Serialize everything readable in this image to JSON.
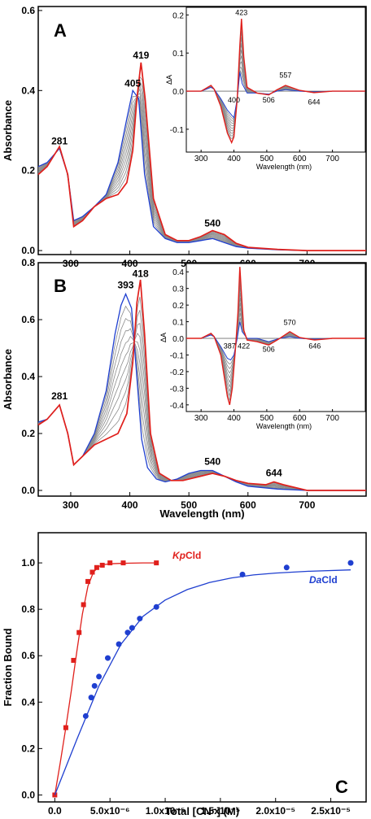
{
  "chart_data": [
    {
      "type": "line",
      "panel_label": "A",
      "xlabel": "",
      "ylabel": "Absorbance",
      "xlim": [
        245,
        800
      ],
      "ylim": [
        -0.01,
        0.61
      ],
      "xticks": [
        300,
        400,
        500,
        600,
        700
      ],
      "yticks": [
        0.0,
        0.2,
        0.4,
        0.6
      ],
      "ytick_labels": [
        "0.0",
        "0.2",
        "0.4",
        "0.6"
      ],
      "grid": false,
      "series": [
        {
          "color": "#1f3fd0",
          "x": [
            245,
            260,
            281,
            295,
            305,
            320,
            340,
            360,
            380,
            395,
            405,
            415,
            425,
            440,
            460,
            480,
            500,
            520,
            540,
            560,
            580,
            600,
            650,
            700,
            800
          ],
          "y": [
            0.21,
            0.22,
            0.255,
            0.19,
            0.075,
            0.085,
            0.11,
            0.14,
            0.22,
            0.33,
            0.4,
            0.38,
            0.19,
            0.06,
            0.03,
            0.02,
            0.02,
            0.025,
            0.03,
            0.02,
            0.01,
            0.006,
            0.002,
            0.0,
            0.0
          ]
        },
        {
          "color": "#e0201c",
          "x": [
            245,
            260,
            281,
            295,
            305,
            320,
            340,
            360,
            380,
            395,
            405,
            412,
            419,
            426,
            440,
            460,
            480,
            500,
            520,
            540,
            560,
            580,
            600,
            650,
            700,
            800
          ],
          "y": [
            0.19,
            0.21,
            0.26,
            0.19,
            0.06,
            0.075,
            0.11,
            0.13,
            0.14,
            0.17,
            0.25,
            0.38,
            0.47,
            0.38,
            0.13,
            0.04,
            0.025,
            0.025,
            0.035,
            0.05,
            0.04,
            0.018,
            0.008,
            0.003,
            0.0,
            0.0
          ]
        }
      ],
      "peak_labels": [
        {
          "text": "281",
          "x": 281,
          "y": 0.265
        },
        {
          "text": "405",
          "x": 405,
          "y": 0.41
        },
        {
          "text": "419",
          "x": 419,
          "y": 0.48
        },
        {
          "text": "540",
          "x": 540,
          "y": 0.06
        }
      ],
      "inset": {
        "type": "line",
        "xlabel": "Wavelength (nm)",
        "ylabel": "ΔA",
        "xlim": [
          255,
          800
        ],
        "ylim": [
          -0.16,
          0.22
        ],
        "xticks": [
          300,
          400,
          500,
          600,
          700
        ],
        "yticks": [
          -0.1,
          0.0,
          0.1,
          0.2
        ],
        "ytick_labels": [
          "-0.1",
          "0.0",
          "0.1",
          "0.2"
        ],
        "series": [
          {
            "color": "#1f3fd0",
            "x": [
              255,
              300,
              330,
              340,
              360,
              380,
              400,
              410,
              418,
              425,
              440,
              470,
              506,
              530,
              557,
              600,
              644,
              700,
              800
            ],
            "y": [
              0.0,
              0.0,
              0.01,
              0.005,
              -0.02,
              -0.05,
              -0.07,
              -0.02,
              0.05,
              0.02,
              -0.005,
              -0.005,
              -0.008,
              0.0,
              0.004,
              0.0,
              -0.002,
              0.0,
              0.0
            ]
          },
          {
            "color": "#e0201c",
            "x": [
              255,
              300,
              330,
              340,
              360,
              380,
              393,
              400,
              410,
              418,
              423,
              430,
              440,
              470,
              506,
              530,
              557,
              600,
              644,
              700,
              800
            ],
            "y": [
              0.0,
              0.0,
              0.015,
              0.005,
              -0.04,
              -0.11,
              -0.135,
              -0.12,
              -0.02,
              0.12,
              0.19,
              0.09,
              0.01,
              -0.005,
              -0.01,
              0.003,
              0.015,
              0.002,
              -0.004,
              0.0,
              0.0
            ]
          }
        ],
        "peak_labels": [
          {
            "text": "423",
            "x": 423,
            "y": 0.2
          },
          {
            "text": "400",
            "x": 400,
            "y": -0.03
          },
          {
            "text": "506",
            "x": 506,
            "y": -0.03
          },
          {
            "text": "557",
            "x": 557,
            "y": 0.035
          },
          {
            "text": "644",
            "x": 644,
            "y": -0.035
          }
        ]
      }
    },
    {
      "type": "line",
      "panel_label": "B",
      "xlabel": "Wavelength (nm)",
      "ylabel": "Absorbance",
      "xlim": [
        245,
        800
      ],
      "ylim": [
        -0.02,
        0.8
      ],
      "xticks": [
        300,
        400,
        500,
        600,
        700
      ],
      "yticks": [
        0.0,
        0.2,
        0.4,
        0.6,
        0.8
      ],
      "ytick_labels": [
        "0.0",
        "0.2",
        "0.4",
        "0.6",
        "0.8"
      ],
      "grid": false,
      "series": [
        {
          "color": "#1f3fd0",
          "x": [
            245,
            260,
            281,
            295,
            305,
            320,
            340,
            360,
            375,
            385,
            393,
            403,
            410,
            420,
            430,
            445,
            460,
            480,
            500,
            520,
            540,
            560,
            580,
            600,
            650,
            700,
            800
          ],
          "y": [
            0.24,
            0.25,
            0.3,
            0.2,
            0.09,
            0.12,
            0.2,
            0.35,
            0.55,
            0.65,
            0.69,
            0.64,
            0.45,
            0.18,
            0.08,
            0.04,
            0.03,
            0.04,
            0.06,
            0.07,
            0.07,
            0.05,
            0.03,
            0.015,
            0.005,
            0.0,
            0.0
          ]
        },
        {
          "color": "#e0201c",
          "x": [
            245,
            260,
            281,
            295,
            305,
            320,
            340,
            360,
            380,
            395,
            405,
            412,
            418,
            425,
            435,
            450,
            470,
            490,
            520,
            540,
            560,
            580,
            600,
            630,
            644,
            660,
            700,
            800
          ],
          "y": [
            0.23,
            0.25,
            0.3,
            0.2,
            0.09,
            0.12,
            0.16,
            0.18,
            0.2,
            0.27,
            0.45,
            0.66,
            0.74,
            0.55,
            0.2,
            0.06,
            0.035,
            0.035,
            0.05,
            0.06,
            0.05,
            0.035,
            0.025,
            0.02,
            0.03,
            0.02,
            0.0,
            0.0
          ]
        }
      ],
      "peak_labels": [
        {
          "text": "281",
          "x": 281,
          "y": 0.32
        },
        {
          "text": "393",
          "x": 393,
          "y": 0.71
        },
        {
          "text": "418",
          "x": 418,
          "y": 0.75
        },
        {
          "text": "540",
          "x": 540,
          "y": 0.09
        },
        {
          "text": "644",
          "x": 644,
          "y": 0.05
        }
      ],
      "inset": {
        "type": "line",
        "xlabel": "Wavelength (nm)",
        "ylabel": "ΔA",
        "xlim": [
          255,
          800
        ],
        "ylim": [
          -0.44,
          0.45
        ],
        "xticks": [
          300,
          400,
          500,
          600,
          700
        ],
        "yticks": [
          -0.4,
          -0.3,
          -0.2,
          -0.1,
          0.0,
          0.1,
          0.2,
          0.3,
          0.4
        ],
        "ytick_labels": [
          "-0.4",
          "-0.3",
          "-0.2",
          "-0.1",
          "0.0",
          "0.1",
          "0.2",
          "0.3",
          "0.4"
        ],
        "series": [
          {
            "color": "#1f3fd0",
            "x": [
              255,
              300,
              330,
              340,
              360,
              380,
              390,
              400,
              410,
              418,
              425,
              440,
              470,
              506,
              540,
              570,
              600,
              646,
              700,
              800
            ],
            "y": [
              0.0,
              0.0,
              0.02,
              0.01,
              -0.05,
              -0.12,
              -0.13,
              -0.1,
              0.0,
              0.1,
              0.04,
              0.0,
              0.0,
              -0.02,
              0.0,
              0.01,
              0.0,
              -0.005,
              0.0,
              0.0
            ]
          },
          {
            "color": "#e0201c",
            "x": [
              255,
              300,
              330,
              340,
              360,
              380,
              387,
              395,
              405,
              412,
              418,
              422,
              430,
              440,
              470,
              506,
              540,
              570,
              600,
              646,
              700,
              800
            ],
            "y": [
              0.0,
              0.0,
              0.03,
              0.01,
              -0.1,
              -0.35,
              -0.4,
              -0.3,
              -0.05,
              0.15,
              0.43,
              0.3,
              0.05,
              -0.01,
              -0.02,
              -0.04,
              0.0,
              0.04,
              0.005,
              -0.01,
              0.0,
              0.0
            ]
          }
        ],
        "peak_labels": [
          {
            "text": "387",
            "x": 387,
            "y": -0.06
          },
          {
            "text": "422",
            "x": 430,
            "y": -0.06
          },
          {
            "text": "506",
            "x": 506,
            "y": -0.08
          },
          {
            "text": "570",
            "x": 570,
            "y": 0.08
          },
          {
            "text": "646",
            "x": 646,
            "y": -0.06
          }
        ]
      }
    },
    {
      "type": "scatter",
      "panel_label": "C",
      "xlabel": "Total [CN⁻] (M)",
      "ylabel": "Fraction Bound",
      "xlim": [
        -1.5e-06,
        2.82e-05
      ],
      "ylim": [
        -0.03,
        1.13
      ],
      "xticks": [
        0,
        5e-06,
        1e-05,
        1.5e-05,
        2e-05,
        2.5e-05
      ],
      "xtick_labels": [
        "0.0",
        "5.0x10⁻⁶",
        "1.0x10⁻⁵",
        "1.5x10⁻⁵",
        "2.0x10⁻⁵",
        "2.5x10⁻⁵"
      ],
      "yticks": [
        0.0,
        0.2,
        0.4,
        0.6,
        0.8,
        1.0
      ],
      "ytick_labels": [
        "0.0",
        "0.2",
        "0.4",
        "0.6",
        "0.8",
        "1.0"
      ],
      "grid": false,
      "series": [
        {
          "name": "KpCld",
          "color": "#e0201c",
          "marker": "square",
          "x": [
            0,
            1e-06,
            1.7e-06,
            2.2e-06,
            2.6e-06,
            3e-06,
            3.4e-06,
            3.8e-06,
            4.3e-06,
            5e-06,
            6.2e-06,
            9.2e-06
          ],
          "y": [
            0.0,
            0.29,
            0.58,
            0.7,
            0.82,
            0.92,
            0.96,
            0.98,
            0.99,
            1.0,
            1.0,
            1.0
          ],
          "fit_x": [
            0,
            5e-07,
            1e-06,
            1.5e-06,
            2e-06,
            2.5e-06,
            3e-06,
            3.5e-06,
            4e-06,
            4.5e-06,
            5e-06,
            6e-06,
            7e-06,
            8e-06,
            9.3e-06
          ],
          "fit_y": [
            0.0,
            0.14,
            0.29,
            0.45,
            0.62,
            0.78,
            0.9,
            0.96,
            0.985,
            0.993,
            0.996,
            0.998,
            0.999,
            1.0,
            1.0
          ]
        },
        {
          "name": "DaCld",
          "color": "#1f3fd0",
          "marker": "circle",
          "x": [
            2.8e-06,
            3.3e-06,
            3.6e-06,
            4e-06,
            4.8e-06,
            5.8e-06,
            6.6e-06,
            7e-06,
            7.7e-06,
            9.2e-06,
            1.7e-05,
            2.1e-05,
            2.68e-05
          ],
          "y": [
            0.34,
            0.42,
            0.47,
            0.51,
            0.59,
            0.65,
            0.7,
            0.72,
            0.76,
            0.81,
            0.95,
            0.98,
            1.0
          ],
          "fit_x": [
            0,
            2e-06,
            4e-06,
            6e-06,
            8e-06,
            1e-05,
            1.2e-05,
            1.4e-05,
            1.6e-05,
            1.8e-05,
            2e-05,
            2.3e-05,
            2.68e-05
          ],
          "fit_y": [
            0.0,
            0.24,
            0.47,
            0.65,
            0.77,
            0.84,
            0.885,
            0.915,
            0.935,
            0.948,
            0.956,
            0.964,
            0.97
          ]
        }
      ],
      "legend_labels": [
        {
          "series": "KpCld",
          "italic": "Kp",
          "plain": "Cld"
        },
        {
          "series": "DaCld",
          "italic": "Da",
          "plain": "Cld"
        }
      ]
    }
  ]
}
